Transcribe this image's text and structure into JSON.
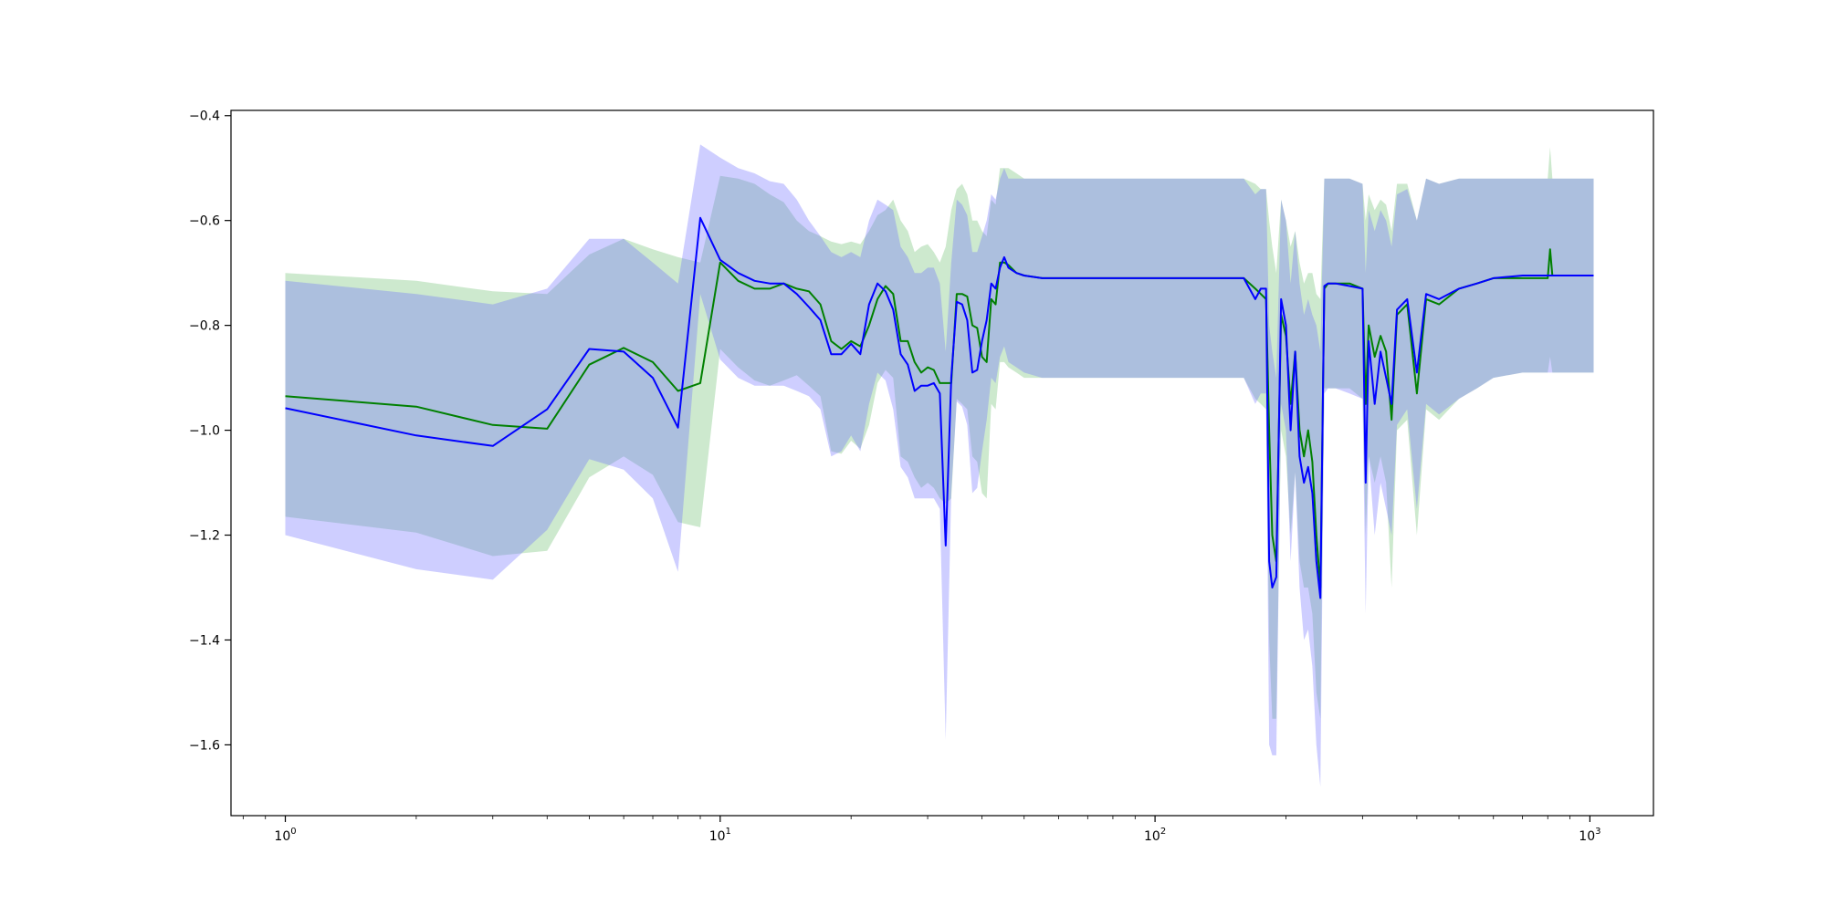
{
  "chart_data": {
    "type": "line",
    "title": "",
    "xlabel": "",
    "ylabel": "",
    "xscale": "log",
    "xlim": [
      0.75,
      1400
    ],
    "ylim": [
      -1.735,
      -0.39
    ],
    "grid": false,
    "legend": "none",
    "x_ticks": [
      {
        "value": 1,
        "base": "10",
        "exp": "0"
      },
      {
        "value": 10,
        "base": "10",
        "exp": "1"
      },
      {
        "value": 100,
        "base": "10",
        "exp": "2"
      },
      {
        "value": 1000,
        "base": "10",
        "exp": "3"
      }
    ],
    "y_ticks": [
      {
        "value": -0.4,
        "label": "−0.4"
      },
      {
        "value": -0.6,
        "label": "−0.6"
      },
      {
        "value": -0.8,
        "label": "−0.8"
      },
      {
        "value": -1.0,
        "label": "−1.0"
      },
      {
        "value": -1.2,
        "label": "−1.2"
      },
      {
        "value": -1.4,
        "label": "−1.4"
      },
      {
        "value": -1.6,
        "label": "−1.6"
      }
    ],
    "series": [
      {
        "color": "#008000",
        "band_color": "#4caf50",
        "band_opacity": 0.28,
        "x": [
          1,
          2,
          3,
          4,
          5,
          6,
          7,
          8,
          9,
          10,
          11,
          12,
          13,
          14,
          15,
          16,
          17,
          18,
          19,
          20,
          21,
          22,
          23,
          24,
          25,
          26,
          27,
          28,
          29,
          30,
          31,
          32,
          33,
          34,
          35,
          36,
          37,
          38,
          39,
          40,
          41,
          42,
          43,
          44,
          45,
          46,
          48,
          50,
          55,
          60,
          70,
          80,
          90,
          100,
          120,
          140,
          160,
          170,
          175,
          180,
          183,
          186,
          190,
          195,
          200,
          205,
          210,
          215,
          220,
          225,
          230,
          235,
          240,
          245,
          250,
          260,
          280,
          300,
          305,
          310,
          320,
          330,
          340,
          350,
          360,
          380,
          400,
          420,
          450,
          500,
          550,
          600,
          700,
          800,
          810,
          820,
          900,
          1020
        ],
        "y": [
          -0.935,
          -0.955,
          -0.99,
          -0.997,
          -0.875,
          -0.843,
          -0.87,
          -0.925,
          -0.91,
          -0.68,
          -0.715,
          -0.73,
          -0.73,
          -0.72,
          -0.73,
          -0.735,
          -0.76,
          -0.83,
          -0.845,
          -0.83,
          -0.84,
          -0.8,
          -0.75,
          -0.725,
          -0.74,
          -0.83,
          -0.83,
          -0.87,
          -0.89,
          -0.88,
          -0.885,
          -0.91,
          -0.91,
          -0.91,
          -0.74,
          -0.74,
          -0.745,
          -0.8,
          -0.805,
          -0.86,
          -0.87,
          -0.75,
          -0.76,
          -0.68,
          -0.68,
          -0.685,
          -0.7,
          -0.705,
          -0.71,
          -0.71,
          -0.71,
          -0.71,
          -0.71,
          -0.71,
          -0.71,
          -0.71,
          -0.71,
          -0.73,
          -0.74,
          -0.75,
          -1.0,
          -1.2,
          -1.25,
          -0.78,
          -0.82,
          -0.95,
          -0.85,
          -1.0,
          -1.05,
          -1.0,
          -1.06,
          -1.2,
          -1.3,
          -0.73,
          -0.72,
          -0.72,
          -0.72,
          -0.73,
          -0.95,
          -0.8,
          -0.86,
          -0.82,
          -0.85,
          -0.98,
          -0.78,
          -0.76,
          -0.93,
          -0.75,
          -0.76,
          -0.73,
          -0.72,
          -0.71,
          -0.71,
          -0.71,
          -0.655,
          -0.705,
          -0.705,
          -0.705
        ],
        "upper": [
          -0.7,
          -0.715,
          -0.735,
          -0.74,
          -0.665,
          -0.635,
          -0.655,
          -0.67,
          -0.68,
          -0.515,
          -0.52,
          -0.53,
          -0.55,
          -0.565,
          -0.6,
          -0.62,
          -0.63,
          -0.64,
          -0.645,
          -0.64,
          -0.645,
          -0.62,
          -0.59,
          -0.58,
          -0.56,
          -0.6,
          -0.62,
          -0.66,
          -0.65,
          -0.645,
          -0.66,
          -0.68,
          -0.65,
          -0.58,
          -0.54,
          -0.53,
          -0.55,
          -0.6,
          -0.6,
          -0.62,
          -0.63,
          -0.56,
          -0.57,
          -0.5,
          -0.5,
          -0.5,
          -0.51,
          -0.52,
          -0.52,
          -0.52,
          -0.52,
          -0.52,
          -0.52,
          -0.52,
          -0.52,
          -0.52,
          -0.52,
          -0.53,
          -0.54,
          -0.54,
          -0.6,
          -0.65,
          -0.7,
          -0.56,
          -0.6,
          -0.65,
          -0.62,
          -0.68,
          -0.72,
          -0.7,
          -0.7,
          -0.74,
          -0.75,
          -0.52,
          -0.52,
          -0.52,
          -0.52,
          -0.53,
          -0.6,
          -0.55,
          -0.58,
          -0.56,
          -0.57,
          -0.62,
          -0.53,
          -0.53,
          -0.6,
          -0.52,
          -0.53,
          -0.52,
          -0.52,
          -0.52,
          -0.52,
          -0.52,
          -0.46,
          -0.52,
          -0.52,
          -0.52
        ],
        "lower": [
          -1.165,
          -1.195,
          -1.24,
          -1.23,
          -1.09,
          -1.05,
          -1.085,
          -1.175,
          -1.185,
          -0.845,
          -0.88,
          -0.905,
          -0.915,
          -0.905,
          -0.895,
          -0.915,
          -0.935,
          -1.04,
          -1.045,
          -1.02,
          -1.035,
          -0.99,
          -0.91,
          -0.885,
          -0.9,
          -1.05,
          -1.06,
          -1.09,
          -1.11,
          -1.1,
          -1.11,
          -1.13,
          -1.14,
          -1.13,
          -0.94,
          -0.95,
          -0.96,
          -1.05,
          -1.06,
          -1.12,
          -1.13,
          -0.95,
          -0.96,
          -0.87,
          -0.87,
          -0.88,
          -0.89,
          -0.9,
          -0.9,
          -0.9,
          -0.9,
          -0.9,
          -0.9,
          -0.9,
          -0.9,
          -0.9,
          -0.9,
          -0.94,
          -0.95,
          -0.96,
          -1.4,
          -1.55,
          -1.55,
          -1.0,
          -1.05,
          -1.2,
          -1.08,
          -1.25,
          -1.3,
          -1.3,
          -1.35,
          -1.5,
          -1.55,
          -0.92,
          -0.92,
          -0.92,
          -0.92,
          -0.94,
          -1.2,
          -1.05,
          -1.1,
          -1.05,
          -1.1,
          -1.3,
          -1.0,
          -0.98,
          -1.2,
          -0.96,
          -0.98,
          -0.94,
          -0.92,
          -0.9,
          -0.89,
          -0.89,
          -0.86,
          -0.89,
          -0.89,
          -0.89
        ]
      },
      {
        "color": "#0000ff",
        "band_color": "#6a6aff",
        "band_opacity": 0.33,
        "x": [
          1,
          2,
          3,
          4,
          5,
          6,
          7,
          8,
          9,
          10,
          11,
          12,
          13,
          14,
          15,
          16,
          17,
          18,
          19,
          20,
          21,
          22,
          23,
          24,
          25,
          26,
          27,
          28,
          29,
          30,
          31,
          32,
          33,
          34,
          35,
          36,
          37,
          38,
          39,
          40,
          41,
          42,
          43,
          44,
          45,
          46,
          48,
          50,
          55,
          60,
          70,
          80,
          90,
          100,
          120,
          140,
          160,
          170,
          175,
          180,
          183,
          186,
          190,
          195,
          200,
          205,
          210,
          215,
          220,
          225,
          230,
          235,
          240,
          245,
          250,
          260,
          280,
          300,
          305,
          310,
          320,
          330,
          340,
          350,
          360,
          380,
          400,
          420,
          450,
          500,
          550,
          600,
          700,
          800,
          810,
          820,
          900,
          1020
        ],
        "y": [
          -0.958,
          -1.01,
          -1.03,
          -0.96,
          -0.845,
          -0.85,
          -0.9,
          -0.995,
          -0.595,
          -0.675,
          -0.7,
          -0.715,
          -0.72,
          -0.72,
          -0.74,
          -0.765,
          -0.79,
          -0.855,
          -0.855,
          -0.835,
          -0.855,
          -0.76,
          -0.72,
          -0.735,
          -0.77,
          -0.855,
          -0.875,
          -0.925,
          -0.915,
          -0.915,
          -0.91,
          -0.93,
          -1.22,
          -0.9,
          -0.755,
          -0.76,
          -0.79,
          -0.89,
          -0.885,
          -0.83,
          -0.79,
          -0.72,
          -0.73,
          -0.69,
          -0.67,
          -0.69,
          -0.7,
          -0.705,
          -0.71,
          -0.71,
          -0.71,
          -0.71,
          -0.71,
          -0.71,
          -0.71,
          -0.71,
          -0.71,
          -0.75,
          -0.73,
          -0.73,
          -1.25,
          -1.3,
          -1.28,
          -0.75,
          -0.8,
          -1.0,
          -0.85,
          -1.05,
          -1.1,
          -1.07,
          -1.12,
          -1.25,
          -1.32,
          -0.725,
          -0.72,
          -0.72,
          -0.725,
          -0.73,
          -1.1,
          -0.83,
          -0.95,
          -0.85,
          -0.9,
          -0.95,
          -0.77,
          -0.75,
          -0.89,
          -0.74,
          -0.75,
          -0.73,
          -0.72,
          -0.71,
          -0.705,
          -0.705,
          -0.705,
          -0.705,
          -0.705,
          -0.705
        ],
        "upper": [
          -0.715,
          -0.74,
          -0.76,
          -0.73,
          -0.635,
          -0.635,
          -0.68,
          -0.72,
          -0.455,
          -0.48,
          -0.5,
          -0.51,
          -0.525,
          -0.53,
          -0.56,
          -0.6,
          -0.63,
          -0.66,
          -0.67,
          -0.66,
          -0.67,
          -0.6,
          -0.56,
          -0.57,
          -0.58,
          -0.65,
          -0.67,
          -0.7,
          -0.7,
          -0.69,
          -0.69,
          -0.72,
          -0.85,
          -0.68,
          -0.56,
          -0.57,
          -0.59,
          -0.66,
          -0.66,
          -0.63,
          -0.6,
          -0.55,
          -0.56,
          -0.52,
          -0.5,
          -0.52,
          -0.52,
          -0.52,
          -0.52,
          -0.52,
          -0.52,
          -0.52,
          -0.52,
          -0.52,
          -0.52,
          -0.52,
          -0.52,
          -0.55,
          -0.54,
          -0.54,
          -0.8,
          -0.85,
          -0.9,
          -0.56,
          -0.6,
          -0.72,
          -0.62,
          -0.72,
          -0.78,
          -0.75,
          -0.78,
          -0.8,
          -0.85,
          -0.52,
          -0.52,
          -0.52,
          -0.52,
          -0.53,
          -0.7,
          -0.58,
          -0.62,
          -0.58,
          -0.6,
          -0.65,
          -0.55,
          -0.54,
          -0.6,
          -0.52,
          -0.53,
          -0.52,
          -0.52,
          -0.52,
          -0.52,
          -0.52,
          -0.52,
          -0.52,
          -0.52,
          -0.52
        ],
        "lower": [
          -1.2,
          -1.265,
          -1.285,
          -1.19,
          -1.055,
          -1.075,
          -1.13,
          -1.27,
          -0.74,
          -0.865,
          -0.9,
          -0.915,
          -0.915,
          -0.915,
          -0.925,
          -0.935,
          -0.96,
          -1.05,
          -1.04,
          -1.01,
          -1.04,
          -0.95,
          -0.89,
          -0.905,
          -0.96,
          -1.07,
          -1.09,
          -1.13,
          -1.13,
          -1.13,
          -1.13,
          -1.15,
          -1.59,
          -1.12,
          -0.945,
          -0.955,
          -0.99,
          -1.12,
          -1.11,
          -1.04,
          -0.98,
          -0.9,
          -0.91,
          -0.86,
          -0.84,
          -0.87,
          -0.88,
          -0.89,
          -0.9,
          -0.9,
          -0.9,
          -0.9,
          -0.9,
          -0.9,
          -0.9,
          -0.9,
          -0.9,
          -0.95,
          -0.93,
          -0.93,
          -1.6,
          -1.62,
          -1.62,
          -0.95,
          -1.0,
          -1.25,
          -1.08,
          -1.3,
          -1.4,
          -1.38,
          -1.45,
          -1.6,
          -1.68,
          -0.93,
          -0.92,
          -0.92,
          -0.93,
          -0.94,
          -1.35,
          -1.05,
          -1.2,
          -1.1,
          -1.15,
          -1.2,
          -0.99,
          -0.96,
          -1.15,
          -0.95,
          -0.97,
          -0.94,
          -0.92,
          -0.9,
          -0.89,
          -0.89,
          -0.89,
          -0.89,
          -0.89,
          -0.89
        ]
      }
    ]
  }
}
